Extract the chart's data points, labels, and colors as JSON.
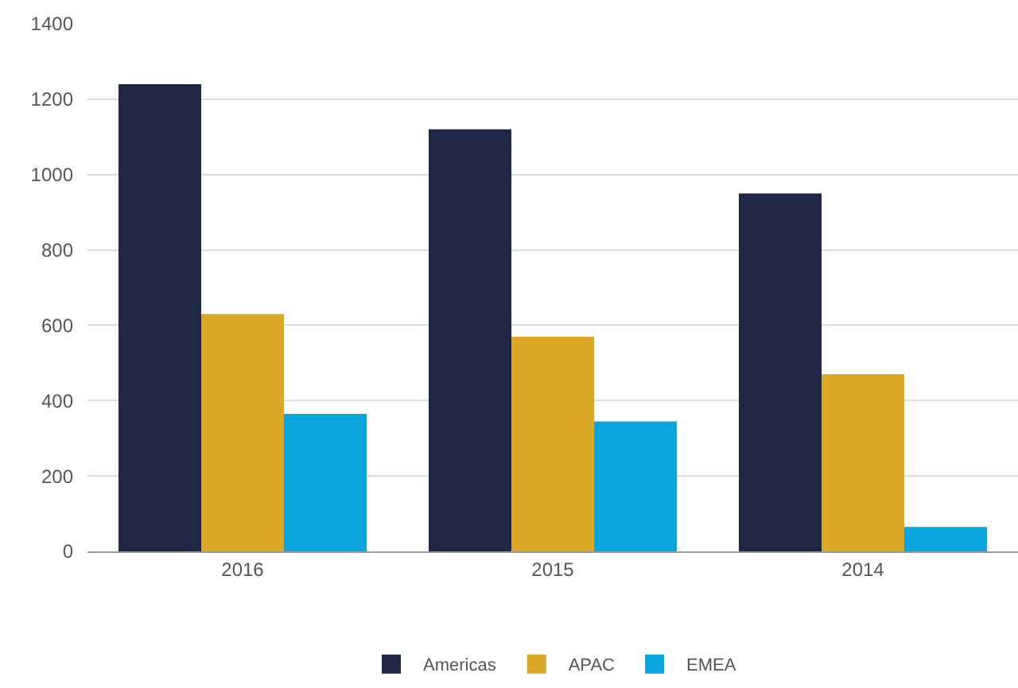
{
  "chart_data": {
    "type": "bar",
    "categories": [
      "2016",
      "2015",
      "2014"
    ],
    "series": [
      {
        "name": "Americas",
        "color": "#1f2744",
        "values": [
          1240,
          1120,
          950
        ]
      },
      {
        "name": "APAC",
        "color": "#dba827",
        "values": [
          630,
          570,
          470
        ]
      },
      {
        "name": "EMEA",
        "color": "#0aa5dc",
        "values": [
          365,
          345,
          65
        ]
      }
    ],
    "ylim": [
      0,
      1400
    ],
    "yticks": [
      0,
      200,
      400,
      600,
      800,
      1000,
      1200,
      1400
    ],
    "grid": "y",
    "legend": "bottom"
  }
}
